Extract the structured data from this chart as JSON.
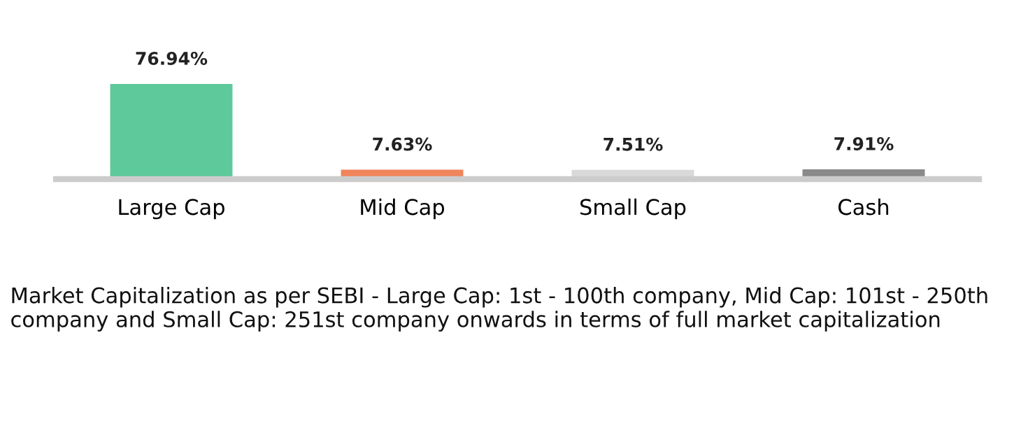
{
  "chart_data": {
    "type": "bar",
    "categories": [
      "Large Cap",
      "Mid Cap",
      "Small Cap",
      "Cash"
    ],
    "values": [
      76.94,
      7.63,
      7.51,
      7.91
    ],
    "colors": [
      "#5ec99a",
      "#f0845a",
      "#d9d9d9",
      "#8a8a8a"
    ],
    "value_labels": [
      "76.94%",
      "7.63%",
      "7.51%",
      "7.91%"
    ],
    "annotations": [
      "Market Capitalization as per SEBI - Large Cap: 1st - 100th company, Mid Cap: 101st - 250th company and Small Cap: 251st company onwards in terms of full market capitalization"
    ]
  }
}
